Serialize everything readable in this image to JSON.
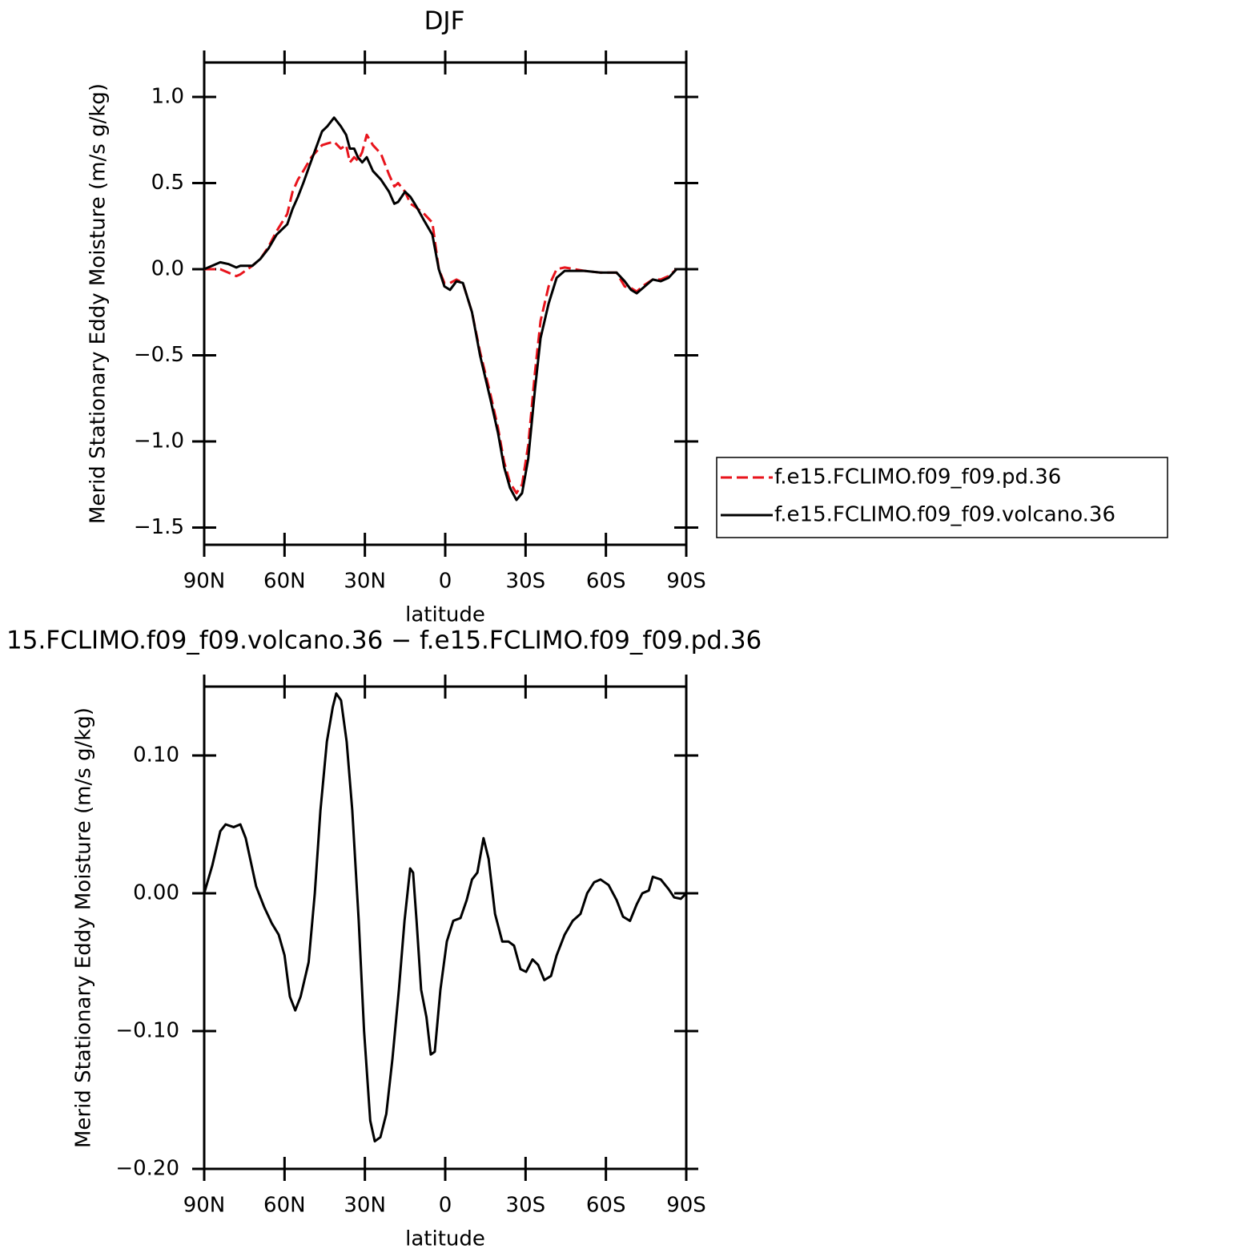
{
  "chart_data": [
    {
      "type": "line",
      "title": "DJF",
      "xlabel": "latitude",
      "ylabel": "Merid Stationary Eddy Moisture (m/s g/kg)",
      "xlim": [
        90,
        -90
      ],
      "xticks": [
        {
          "value": 90,
          "label": "90N"
        },
        {
          "value": 60,
          "label": "60N"
        },
        {
          "value": 30,
          "label": "30N"
        },
        0,
        {
          "value": -30,
          "label": "30S"
        },
        {
          "value": -60,
          "label": "60S"
        },
        {
          "value": -90,
          "label": "90S"
        }
      ],
      "ylim": [
        -1.6,
        1.2
      ],
      "yticks": [
        {
          "value": -1.5,
          "label": "−1.5"
        },
        {
          "value": -1,
          "label": "−1.0"
        },
        {
          "value": -0.5,
          "label": "−0.5"
        },
        {
          "value": 0,
          "label": "0.0"
        },
        {
          "value": 0.5,
          "label": "0.5"
        },
        {
          "value": 1,
          "label": "1.0"
        }
      ],
      "legend": "right",
      "x": [
        90,
        84,
        81,
        78,
        76.5,
        72,
        69,
        66,
        63,
        59,
        57,
        55,
        53,
        50,
        46,
        44,
        41.5,
        39,
        37,
        35.6,
        34,
        32.6,
        31,
        29.3,
        27,
        24,
        21,
        19,
        17.6,
        15,
        13,
        11,
        7.8,
        4.8,
        2.4,
        0.3,
        -1.8,
        -4.2,
        -6.6,
        -10,
        -13,
        -16.8,
        -19.7,
        -22,
        -24.2,
        -26.6,
        -28.7,
        -31,
        -33.5,
        -35.6,
        -38.6,
        -41.6,
        -44.6,
        -52,
        -58,
        -64,
        -67,
        -69.4,
        -71.5,
        -74.5,
        -77.5,
        -80.5,
        -83.4,
        -86.4,
        -90
      ],
      "series": [
        {
          "name": "f.e15.FCLIMO.f09_f09.pd.36",
          "color": "#e8141c",
          "dash": "dashed",
          "values": [
            0,
            0,
            -0.02,
            -0.04,
            -0.03,
            0.02,
            0.06,
            0.13,
            0.22,
            0.32,
            0.45,
            0.52,
            0.57,
            0.65,
            0.72,
            0.73,
            0.74,
            0.7,
            0.72,
            0.62,
            0.65,
            0.63,
            0.68,
            0.78,
            0.72,
            0.67,
            0.55,
            0.48,
            0.5,
            0.45,
            0.38,
            0.36,
            0.32,
            0.27,
            0,
            -0.08,
            -0.08,
            -0.06,
            -0.08,
            -0.25,
            -0.48,
            -0.72,
            -0.92,
            -1.12,
            -1.24,
            -1.3,
            -1.25,
            -1.02,
            -0.6,
            -0.3,
            -0.1,
            0,
            0.01,
            -0.01,
            -0.02,
            -0.02,
            -0.1,
            -0.11,
            -0.13,
            -0.09,
            -0.06,
            -0.06,
            -0.04,
            0,
            0
          ]
        },
        {
          "name": "f.e15.FCLIMO.f09_f09.volcano.36",
          "color": "#000000",
          "dash": "solid",
          "values": [
            0,
            0.04,
            0.03,
            0.01,
            0.02,
            0.02,
            0.06,
            0.12,
            0.2,
            0.26,
            0.35,
            0.42,
            0.5,
            0.63,
            0.8,
            0.83,
            0.88,
            0.83,
            0.78,
            0.7,
            0.7,
            0.65,
            0.62,
            0.65,
            0.57,
            0.52,
            0.45,
            0.38,
            0.39,
            0.45,
            0.42,
            0.37,
            0.28,
            0.2,
            0,
            -0.1,
            -0.12,
            -0.07,
            -0.08,
            -0.25,
            -0.5,
            -0.75,
            -0.95,
            -1.15,
            -1.27,
            -1.34,
            -1.3,
            -1.1,
            -0.7,
            -0.4,
            -0.2,
            -0.05,
            -0.01,
            -0.01,
            -0.02,
            -0.02,
            -0.07,
            -0.12,
            -0.14,
            -0.1,
            -0.06,
            -0.07,
            -0.05,
            0,
            0
          ]
        }
      ]
    },
    {
      "type": "line",
      "title": "15.FCLIMO.f09_f09.volcano.36 − f.e15.FCLIMO.f09_f09.pd.36",
      "xlabel": "latitude",
      "ylabel": "Merid Stationary Eddy Moisture (m/s g/kg)",
      "xlim": [
        90,
        -90
      ],
      "xticks": [
        {
          "value": 90,
          "label": "90N"
        },
        {
          "value": 60,
          "label": "60N"
        },
        {
          "value": 30,
          "label": "30N"
        },
        0,
        {
          "value": -30,
          "label": "30S"
        },
        {
          "value": -60,
          "label": "60S"
        },
        {
          "value": -90,
          "label": "90S"
        }
      ],
      "ylim": [
        -0.2,
        0.15
      ],
      "yticks": [
        {
          "value": -0.2,
          "label": "−0.20"
        },
        {
          "value": -0.1,
          "label": "−0.10"
        },
        {
          "value": 0,
          "label": "0.00"
        },
        {
          "value": 0.1,
          "label": "0.10"
        }
      ],
      "x": [
        90,
        87,
        84,
        82,
        79,
        76.5,
        74.5,
        70.6,
        67.6,
        64.7,
        62.2,
        60,
        58,
        56,
        54,
        51,
        48.7,
        46.6,
        44.2,
        42,
        40.7,
        38.9,
        36.8,
        34.7,
        32.3,
        30.3,
        28,
        26.3,
        24.2,
        22,
        19.7,
        17.3,
        15.2,
        13.1,
        12,
        10.7,
        9,
        7,
        5.4,
        3.9,
        1.8,
        -0.6,
        -3,
        -5.7,
        -8,
        -10,
        -12,
        -14.3,
        -16.2,
        -18.6,
        -21.3,
        -23.6,
        -25.7,
        -28.1,
        -30.2,
        -32.6,
        -34.7,
        -37,
        -39.5,
        -41.6,
        -44.6,
        -47.6,
        -50.5,
        -53,
        -55.6,
        -58,
        -61,
        -64,
        -66.4,
        -69,
        -71.5,
        -73.6,
        -76,
        -77.5,
        -80.5,
        -83.4,
        -85.5,
        -88,
        -90
      ],
      "color": "#000000",
      "values": [
        0,
        0.02,
        0.045,
        0.05,
        0.048,
        0.05,
        0.04,
        0.005,
        -0.01,
        -0.022,
        -0.03,
        -0.045,
        -0.075,
        -0.085,
        -0.075,
        -0.05,
        0,
        0.06,
        0.11,
        0.135,
        0.145,
        0.14,
        0.11,
        0.06,
        -0.02,
        -0.1,
        -0.165,
        -0.18,
        -0.177,
        -0.16,
        -0.12,
        -0.07,
        -0.02,
        0.018,
        0.015,
        -0.02,
        -0.07,
        -0.09,
        -0.117,
        -0.115,
        -0.07,
        -0.035,
        -0.02,
        -0.018,
        -0.005,
        0.01,
        0.015,
        0.04,
        0.025,
        -0.015,
        -0.035,
        -0.035,
        -0.038,
        -0.055,
        -0.057,
        -0.048,
        -0.052,
        -0.063,
        -0.06,
        -0.045,
        -0.03,
        -0.02,
        -0.015,
        0,
        0.008,
        0.01,
        0.006,
        -0.005,
        -0.017,
        -0.02,
        -0.008,
        0,
        0.002,
        0.012,
        0.01,
        0.003,
        -0.003,
        -0.004,
        0
      ]
    }
  ]
}
